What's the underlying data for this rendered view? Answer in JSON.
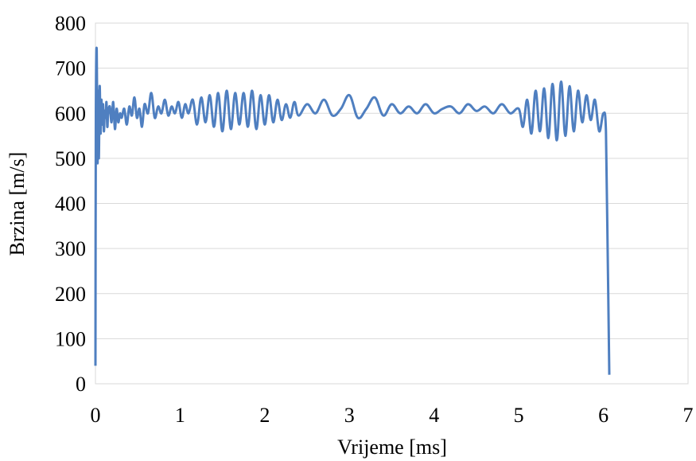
{
  "chart_data": {
    "type": "line",
    "title": "",
    "xlabel": "Vrijeme [ms]",
    "ylabel": "Brzina [m/s]",
    "xlim": [
      0,
      7
    ],
    "ylim": [
      0,
      800
    ],
    "xticks": [
      "0",
      "1",
      "2",
      "3",
      "4",
      "5",
      "6",
      "7"
    ],
    "yticks": [
      "0",
      "100",
      "200",
      "300",
      "400",
      "500",
      "600",
      "700",
      "800"
    ],
    "grid": "horizontal",
    "legend": "none",
    "series_color": "#4f7fc0",
    "series": [
      {
        "x": [
          0.0,
          0.005,
          0.015,
          0.025,
          0.03,
          0.04,
          0.05,
          0.06,
          0.07,
          0.08,
          0.09,
          0.1,
          0.11,
          0.12,
          0.13,
          0.14,
          0.15,
          0.17,
          0.19,
          0.21,
          0.23,
          0.25,
          0.27,
          0.29,
          0.31,
          0.34,
          0.37,
          0.4,
          0.43,
          0.46,
          0.49,
          0.52,
          0.55,
          0.58,
          0.62,
          0.66,
          0.7,
          0.74,
          0.78,
          0.82,
          0.86,
          0.9,
          0.94,
          0.98,
          1.02,
          1.06,
          1.1,
          1.15,
          1.2,
          1.25,
          1.3,
          1.35,
          1.4,
          1.45,
          1.5,
          1.55,
          1.6,
          1.65,
          1.7,
          1.75,
          1.8,
          1.85,
          1.9,
          1.95,
          2.0,
          2.05,
          2.1,
          2.15,
          2.2,
          2.25,
          2.3,
          2.35,
          2.4,
          2.5,
          2.6,
          2.7,
          2.8,
          2.9,
          3.0,
          3.1,
          3.2,
          3.3,
          3.4,
          3.5,
          3.6,
          3.7,
          3.8,
          3.9,
          4.0,
          4.1,
          4.2,
          4.3,
          4.4,
          4.5,
          4.6,
          4.7,
          4.8,
          4.9,
          5.0,
          5.05,
          5.1,
          5.15,
          5.2,
          5.25,
          5.3,
          5.35,
          5.4,
          5.45,
          5.5,
          5.55,
          5.6,
          5.65,
          5.7,
          5.75,
          5.8,
          5.85,
          5.9,
          5.95,
          6.0,
          6.03,
          6.05,
          6.07
        ],
        "y": [
          40,
          600,
          740,
          490,
          650,
          500,
          660,
          555,
          630,
          575,
          620,
          560,
          605,
          590,
          625,
          570,
          600,
          615,
          580,
          625,
          565,
          610,
          580,
          600,
          590,
          610,
          575,
          615,
          595,
          635,
          590,
          610,
          570,
          620,
          600,
          645,
          590,
          615,
          600,
          630,
          595,
          615,
          600,
          625,
          590,
          620,
          600,
          630,
          575,
          635,
          580,
          640,
          570,
          645,
          560,
          650,
          565,
          645,
          575,
          645,
          570,
          650,
          565,
          640,
          575,
          640,
          580,
          630,
          585,
          620,
          590,
          625,
          595,
          620,
          600,
          630,
          595,
          610,
          640,
          590,
          610,
          635,
          595,
          620,
          600,
          615,
          600,
          620,
          600,
          610,
          615,
          600,
          620,
          605,
          615,
          600,
          620,
          600,
          610,
          570,
          630,
          555,
          650,
          560,
          655,
          545,
          665,
          540,
          670,
          550,
          660,
          560,
          650,
          580,
          640,
          585,
          630,
          560,
          600,
          560,
          300,
          20
        ]
      }
    ]
  }
}
